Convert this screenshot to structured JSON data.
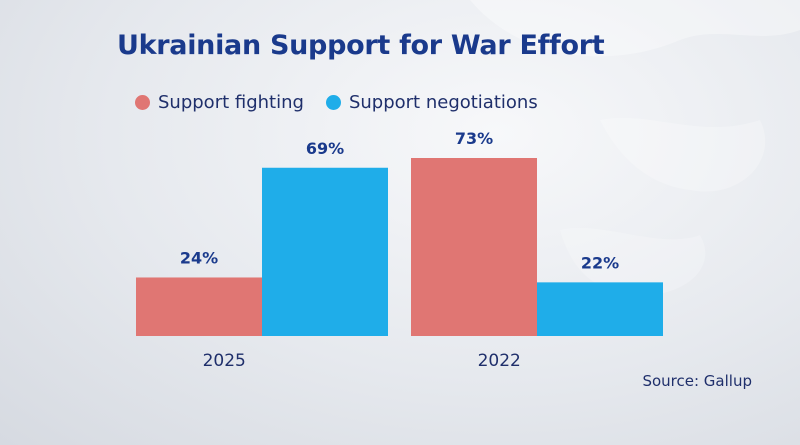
{
  "chart_data": {
    "type": "bar",
    "title": "Ukrainian Support for War Effort",
    "categories": [
      "2025",
      "2022"
    ],
    "series": [
      {
        "name": "Support fighting",
        "values": [
          24,
          73
        ],
        "labels": [
          "24%",
          "73%"
        ]
      },
      {
        "name": "Support negotiations",
        "values": [
          69,
          22
        ],
        "labels": [
          "69%",
          "22%"
        ]
      }
    ],
    "ylim": [
      0,
      73
    ],
    "legend_position": "top-left",
    "grid": false,
    "source": "Source: Gallup"
  },
  "colors": {
    "fighting": "#e07673",
    "negotiations": "#1fade9",
    "title": "#1a3a8c"
  }
}
